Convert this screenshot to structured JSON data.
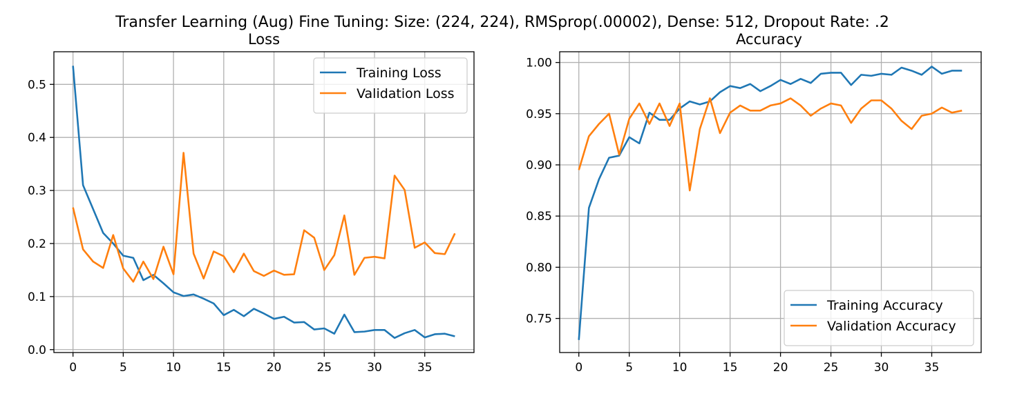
{
  "figure": {
    "suptitle": "Transfer Learning (Aug) Fine Tuning: Size: (224, 224), RMSprop(.00002), Dense: 512, Dropout Rate: .2"
  },
  "chart_data": [
    {
      "type": "line",
      "title": "Loss",
      "xlabel": "",
      "ylabel": "",
      "grid": true,
      "legend_position": "upper right",
      "xlim": [
        -1.9,
        39.9
      ],
      "ylim": [
        -0.0055,
        0.5615
      ],
      "xticks": [
        0,
        5,
        10,
        15,
        20,
        25,
        30,
        35
      ],
      "xtick_labels": [
        "0",
        "5",
        "10",
        "15",
        "20",
        "25",
        "30",
        "35"
      ],
      "yticks": [
        0.0,
        0.1,
        0.2,
        0.3,
        0.4,
        0.5
      ],
      "ytick_labels": [
        "0.0",
        "0.1",
        "0.2",
        "0.3",
        "0.4",
        "0.5"
      ],
      "x": [
        0,
        1,
        2,
        3,
        4,
        5,
        6,
        7,
        8,
        9,
        10,
        11,
        12,
        13,
        14,
        15,
        16,
        17,
        18,
        19,
        20,
        21,
        22,
        23,
        24,
        25,
        26,
        27,
        28,
        29,
        30,
        31,
        32,
        33,
        34,
        35,
        36,
        37,
        38
      ],
      "series": [
        {
          "name": "Training Loss",
          "color": "#1f77b4",
          "values": [
            0.535,
            0.31,
            0.265,
            0.22,
            0.2,
            0.177,
            0.173,
            0.131,
            0.141,
            0.125,
            0.108,
            0.101,
            0.104,
            0.096,
            0.087,
            0.065,
            0.075,
            0.063,
            0.077,
            0.068,
            0.058,
            0.062,
            0.051,
            0.052,
            0.038,
            0.04,
            0.03,
            0.066,
            0.033,
            0.034,
            0.037,
            0.037,
            0.022,
            0.031,
            0.037,
            0.023,
            0.029,
            0.03,
            0.025
          ]
        },
        {
          "name": "Validation Loss",
          "color": "#ff7f0e",
          "values": [
            0.268,
            0.189,
            0.166,
            0.154,
            0.216,
            0.153,
            0.128,
            0.166,
            0.133,
            0.194,
            0.142,
            0.371,
            0.181,
            0.134,
            0.185,
            0.176,
            0.146,
            0.181,
            0.148,
            0.139,
            0.149,
            0.141,
            0.142,
            0.225,
            0.211,
            0.15,
            0.178,
            0.253,
            0.141,
            0.173,
            0.175,
            0.172,
            0.328,
            0.301,
            0.192,
            0.202,
            0.182,
            0.18,
            0.219
          ]
        }
      ]
    },
    {
      "type": "line",
      "title": "Accuracy",
      "xlabel": "",
      "ylabel": "",
      "grid": true,
      "legend_position": "lower right",
      "xlim": [
        -1.9,
        39.9
      ],
      "ylim": [
        0.7167,
        1.0105
      ],
      "xticks": [
        0,
        5,
        10,
        15,
        20,
        25,
        30,
        35
      ],
      "xtick_labels": [
        "0",
        "5",
        "10",
        "15",
        "20",
        "25",
        "30",
        "35"
      ],
      "yticks": [
        0.75,
        0.8,
        0.85,
        0.9,
        0.95,
        1.0
      ],
      "ytick_labels": [
        "0.75",
        "0.80",
        "0.85",
        "0.90",
        "0.95",
        "1.00"
      ],
      "x": [
        0,
        1,
        2,
        3,
        4,
        5,
        6,
        7,
        8,
        9,
        10,
        11,
        12,
        13,
        14,
        15,
        16,
        17,
        18,
        19,
        20,
        21,
        22,
        23,
        24,
        25,
        26,
        27,
        28,
        29,
        30,
        31,
        32,
        33,
        34,
        35,
        36,
        37,
        38
      ],
      "series": [
        {
          "name": "Training Accuracy",
          "color": "#1f77b4",
          "values": [
            0.729,
            0.858,
            0.886,
            0.907,
            0.909,
            0.927,
            0.921,
            0.951,
            0.944,
            0.944,
            0.955,
            0.962,
            0.959,
            0.962,
            0.971,
            0.977,
            0.975,
            0.979,
            0.972,
            0.977,
            0.983,
            0.979,
            0.984,
            0.98,
            0.989,
            0.99,
            0.99,
            0.978,
            0.988,
            0.987,
            0.989,
            0.988,
            0.995,
            0.992,
            0.988,
            0.996,
            0.989,
            0.992,
            0.992
          ]
        },
        {
          "name": "Validation Accuracy",
          "color": "#ff7f0e",
          "values": [
            0.895,
            0.928,
            0.94,
            0.95,
            0.91,
            0.945,
            0.96,
            0.94,
            0.96,
            0.938,
            0.96,
            0.875,
            0.935,
            0.965,
            0.931,
            0.951,
            0.958,
            0.953,
            0.953,
            0.958,
            0.96,
            0.965,
            0.958,
            0.948,
            0.955,
            0.96,
            0.958,
            0.941,
            0.955,
            0.963,
            0.963,
            0.955,
            0.943,
            0.935,
            0.948,
            0.95,
            0.956,
            0.951,
            0.953
          ]
        }
      ]
    }
  ]
}
